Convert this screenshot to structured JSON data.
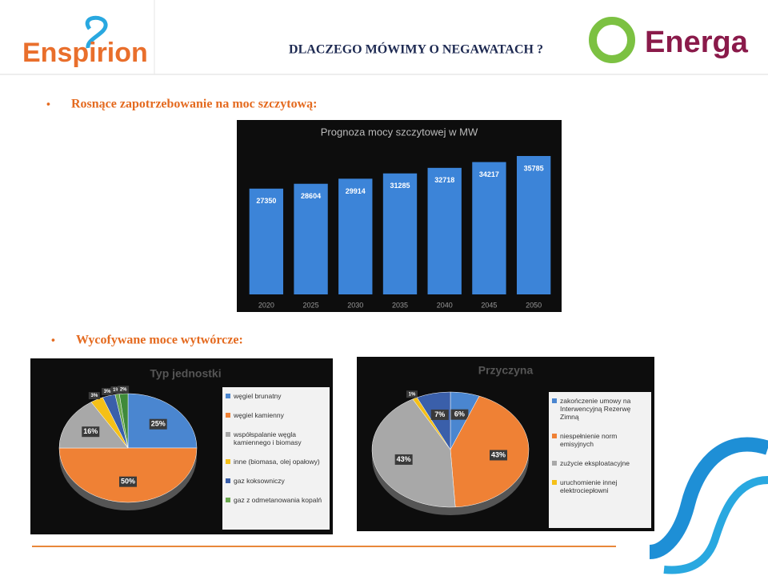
{
  "header": {
    "logo_left": "Enspirion",
    "title": "DLACZEGO MÓWIMY O NEGAWATACH ?",
    "logo_right": "Energa"
  },
  "bullets": [
    "Rosnące zapotrzebowanie na moc szczytową:",
    "Wycofywane moce wytwórcze:"
  ],
  "chart_data": [
    {
      "type": "bar",
      "title": "Prognoza mocy szczytowej w MW",
      "categories": [
        "2020",
        "2025",
        "2030",
        "2035",
        "2040",
        "2045",
        "2050"
      ],
      "values": [
        27350,
        28604,
        29914,
        31285,
        32718,
        34217,
        35785
      ],
      "color": "#3c84d8"
    },
    {
      "type": "pie",
      "title": "Typ jednostki",
      "categories": [
        "węgiel brunatny",
        "węgiel kamienny",
        "współspalanie węgla kamiennego i biomasy",
        "inne (biomasa, olej opałowy)",
        "gaz koksowniczy",
        "gaz z odmetanowania kopalń",
        null
      ],
      "values": [
        25,
        50,
        16,
        3,
        3,
        1,
        2
      ],
      "value_labels": [
        "25%",
        "50%",
        "16%",
        "3%",
        "3%",
        "1%",
        "2%"
      ],
      "colors": [
        "#4a86d0",
        "#ef8135",
        "#a8a8a8",
        "#f5c018",
        "#3a5faa",
        "#6aa84f",
        "#3f8a3a"
      ]
    },
    {
      "type": "pie",
      "title": "Przyczyna",
      "categories": [
        "zakończenie umowy na Interwencyjną Rezerwę Zimną",
        "niespełnienie norm emisyjnych",
        "zużycie eksploatacyjne",
        "uruchomienie innej elektrociepłowni",
        null
      ],
      "values": [
        6,
        43,
        43,
        1,
        7
      ],
      "value_labels": [
        "6%",
        "43%",
        "43%",
        "1%",
        "7%"
      ],
      "colors": [
        "#4a86d0",
        "#ef8135",
        "#a8a8a8",
        "#f5c018",
        "#3a5faa"
      ]
    }
  ]
}
